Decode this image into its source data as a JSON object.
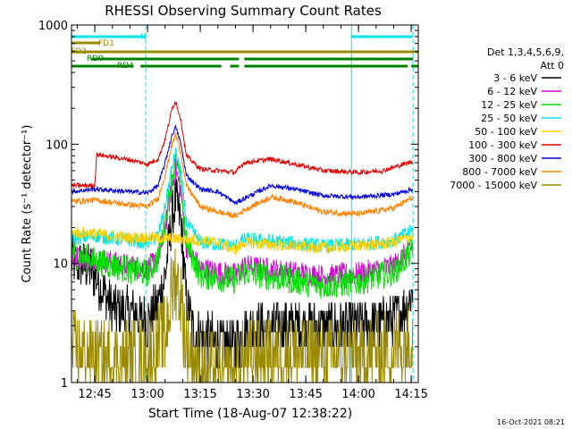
{
  "chart_data": {
    "type": "line",
    "title": "RHESSI Observing Summary Count Rates",
    "xlabel": "Start Time (18-Aug-07 12:38:22)",
    "ylabel": "Count Rate (s⁻¹ detector⁻¹)",
    "y_scale": "log",
    "ylim": [
      1,
      1000
    ],
    "xlim": [
      "12:38:22",
      "14:17:00"
    ],
    "x_ticks": [
      "12:45",
      "13:00",
      "13:15",
      "13:30",
      "13:45",
      "14:00",
      "14:15"
    ],
    "y_ticks": [
      "1",
      "10",
      "100",
      "1000"
    ],
    "legend_header": [
      "Det 1,3,4,5,6,9,",
      "Att 0"
    ],
    "legend_placement": "right",
    "footer": "16-Oct-2021 08:21",
    "state_bars": [
      {
        "name": "N",
        "color": "#00e5e5",
        "segments": [
          [
            "12:38:22",
            "12:59:30"
          ],
          [
            "13:58:00",
            "14:15:30"
          ]
        ]
      },
      {
        "name": "FD1",
        "color": "#9a8a00",
        "segments": [
          [
            "12:38:22",
            "12:46:30"
          ]
        ]
      },
      {
        "name": "FD2",
        "color": "#9a8a00",
        "segments": [
          [
            "12:38:22",
            "14:17:00"
          ]
        ]
      },
      {
        "name": "RD0",
        "color": "#008000",
        "segments": [
          [
            "12:44:00",
            "13:26:00"
          ],
          [
            "13:27:30",
            "14:15:30"
          ]
        ]
      },
      {
        "name": "RD4",
        "color": "#008000",
        "segments": [
          [
            "12:38:22",
            "12:56:00"
          ],
          [
            "12:58:00",
            "13:21:00"
          ],
          [
            "13:23:30",
            "13:26:00"
          ],
          [
            "13:27:30",
            "14:14:00"
          ],
          [
            "14:15:00",
            "14:17:00"
          ]
        ]
      }
    ],
    "vlines": [
      {
        "time": "12:38:22",
        "style": "solid"
      },
      {
        "time": "12:59:30",
        "style": "dashed"
      },
      {
        "time": "13:58:00",
        "style": "solid"
      },
      {
        "time": "14:15:30",
        "style": "dashed"
      }
    ],
    "series": [
      {
        "name": "3 - 6 keV",
        "color": "#000000",
        "points": [
          [
            "12:38:22",
            10.5
          ],
          [
            "12:44:00",
            9
          ],
          [
            "12:50:00",
            4.2
          ],
          [
            "12:55:00",
            3.8
          ],
          [
            "13:00:00",
            3.3
          ],
          [
            "13:03:00",
            4.5
          ],
          [
            "13:05:00",
            8
          ],
          [
            "13:07:00",
            24
          ],
          [
            "13:08:00",
            34
          ],
          [
            "13:09:30",
            22
          ],
          [
            "13:11:00",
            5
          ],
          [
            "13:13:00",
            2.6
          ],
          [
            "13:20:00",
            2.2
          ],
          [
            "13:25:00",
            2
          ],
          [
            "13:27:30",
            2.8
          ],
          [
            "13:40:00",
            3.0
          ],
          [
            "13:50:00",
            2.9
          ],
          [
            "14:00:00",
            3.0
          ],
          [
            "14:10:00",
            3.4
          ],
          [
            "14:14:00",
            4.5
          ],
          [
            "14:15:30",
            6
          ]
        ]
      },
      {
        "name": "6 - 12 keV",
        "color": "#e000e0",
        "points": [
          [
            "12:38:22",
            11.5
          ],
          [
            "12:45:00",
            11
          ],
          [
            "12:55:00",
            9.5
          ],
          [
            "13:00:00",
            9
          ],
          [
            "13:03:00",
            11
          ],
          [
            "13:05:00",
            20
          ],
          [
            "13:07:00",
            45
          ],
          [
            "13:08:00",
            62
          ],
          [
            "13:09:30",
            40
          ],
          [
            "13:11:00",
            14
          ],
          [
            "13:15:00",
            9
          ],
          [
            "13:25:00",
            8
          ],
          [
            "13:27:30",
            9.5
          ],
          [
            "13:40:00",
            8.5
          ],
          [
            "13:50:00",
            7.8
          ],
          [
            "14:00:00",
            8.2
          ],
          [
            "14:10:00",
            9.5
          ],
          [
            "14:15:30",
            14
          ]
        ]
      },
      {
        "name": "12 - 25 keV",
        "color": "#00e000",
        "points": [
          [
            "12:38:22",
            12
          ],
          [
            "12:45:00",
            10.5
          ],
          [
            "12:55:00",
            8.8
          ],
          [
            "13:00:00",
            8.3
          ],
          [
            "13:03:00",
            11
          ],
          [
            "13:05:00",
            22
          ],
          [
            "13:07:00",
            55
          ],
          [
            "13:08:00",
            72
          ],
          [
            "13:09:30",
            48
          ],
          [
            "13:11:00",
            15
          ],
          [
            "13:15:00",
            8
          ],
          [
            "13:25:00",
            7.2
          ],
          [
            "13:27:30",
            8.5
          ],
          [
            "13:40:00",
            7.3
          ],
          [
            "13:50:00",
            6.5
          ],
          [
            "14:00:00",
            7.0
          ],
          [
            "14:10:00",
            8.5
          ],
          [
            "14:15:30",
            13
          ]
        ]
      },
      {
        "name": "25 - 50 keV",
        "color": "#00e5e5",
        "points": [
          [
            "12:38:22",
            16
          ],
          [
            "12:45:00",
            17
          ],
          [
            "12:55:00",
            15.5
          ],
          [
            "13:00:00",
            15
          ],
          [
            "13:03:00",
            17
          ],
          [
            "13:05:00",
            30
          ],
          [
            "13:07:00",
            65
          ],
          [
            "13:08:00",
            85
          ],
          [
            "13:09:30",
            55
          ],
          [
            "13:11:00",
            22
          ],
          [
            "13:15:00",
            15
          ],
          [
            "13:25:00",
            14
          ],
          [
            "13:27:30",
            16
          ],
          [
            "13:40:00",
            15
          ],
          [
            "13:50:00",
            14
          ],
          [
            "14:00:00",
            14.5
          ],
          [
            "14:10:00",
            15.5
          ],
          [
            "14:15:30",
            19
          ]
        ]
      },
      {
        "name": "50 - 100 keV",
        "color": "#ffd000",
        "points": [
          [
            "12:38:22",
            18
          ],
          [
            "12:44:00",
            18
          ],
          [
            "12:50:00",
            17
          ],
          [
            "12:55:00",
            16.5
          ],
          [
            "13:00:00",
            16.5
          ],
          [
            "13:10:00",
            16
          ],
          [
            "13:20:00",
            15
          ],
          [
            "13:25:00",
            13
          ],
          [
            "13:27:30",
            15
          ],
          [
            "13:40:00",
            14
          ],
          [
            "13:50:00",
            13.5
          ],
          [
            "14:00:00",
            14
          ],
          [
            "14:10:00",
            15
          ],
          [
            "14:15:30",
            17
          ]
        ]
      },
      {
        "name": "100 - 300 keV",
        "color": "#e00000",
        "points": [
          [
            "12:38:22",
            45
          ],
          [
            "12:45:00",
            45
          ],
          [
            "12:45:30",
            82
          ],
          [
            "12:55:00",
            74
          ],
          [
            "13:00:00",
            68
          ],
          [
            "13:03:00",
            75
          ],
          [
            "13:05:00",
            110
          ],
          [
            "13:07:00",
            200
          ],
          [
            "13:08:00",
            230
          ],
          [
            "13:09:30",
            160
          ],
          [
            "13:11:00",
            80
          ],
          [
            "13:15:00",
            62
          ],
          [
            "13:20:00",
            60
          ],
          [
            "13:25:00",
            58
          ],
          [
            "13:27:30",
            70
          ],
          [
            "13:35:00",
            75
          ],
          [
            "13:40:00",
            70
          ],
          [
            "13:50:00",
            60
          ],
          [
            "14:00:00",
            58
          ],
          [
            "14:07:00",
            60
          ],
          [
            "14:15:30",
            72
          ]
        ]
      },
      {
        "name": "300 - 800 keV",
        "color": "#0000e0",
        "points": [
          [
            "12:38:22",
            40
          ],
          [
            "12:45:00",
            42
          ],
          [
            "12:55:00",
            40
          ],
          [
            "13:00:00",
            39
          ],
          [
            "13:03:00",
            45
          ],
          [
            "13:05:00",
            70
          ],
          [
            "13:07:00",
            120
          ],
          [
            "13:08:00",
            140
          ],
          [
            "13:09:30",
            100
          ],
          [
            "13:11:00",
            55
          ],
          [
            "13:15:00",
            42
          ],
          [
            "13:20:00",
            40
          ],
          [
            "13:25:00",
            32
          ],
          [
            "13:27:30",
            35
          ],
          [
            "13:35:00",
            45
          ],
          [
            "13:40:00",
            43
          ],
          [
            "13:50:00",
            37
          ],
          [
            "14:00:00",
            36
          ],
          [
            "14:10:00",
            38
          ],
          [
            "14:15:30",
            42
          ]
        ]
      },
      {
        "name": "800 - 7000 keV",
        "color": "#ff8000",
        "points": [
          [
            "12:38:22",
            33
          ],
          [
            "12:45:00",
            34
          ],
          [
            "12:55:00",
            31
          ],
          [
            "13:00:00",
            30
          ],
          [
            "13:03:00",
            35
          ],
          [
            "13:05:00",
            55
          ],
          [
            "13:07:00",
            100
          ],
          [
            "13:08:00",
            120
          ],
          [
            "13:09:30",
            85
          ],
          [
            "13:11:00",
            45
          ],
          [
            "13:15:00",
            30
          ],
          [
            "13:20:00",
            27
          ],
          [
            "13:25:00",
            25
          ],
          [
            "13:27:30",
            28
          ],
          [
            "13:35:00",
            36
          ],
          [
            "13:40:00",
            34
          ],
          [
            "13:50:00",
            27
          ],
          [
            "14:00:00",
            26
          ],
          [
            "14:10:00",
            29
          ],
          [
            "14:15:30",
            36
          ]
        ]
      },
      {
        "name": "7000 - 15000 keV",
        "color": "#9a8a00",
        "points": [
          [
            "12:38:22",
            1.8
          ],
          [
            "12:45:00",
            1.6
          ],
          [
            "12:55:00",
            1.5
          ],
          [
            "13:00:00",
            1.5
          ],
          [
            "13:05:00",
            2.5
          ],
          [
            "13:07:00",
            6
          ],
          [
            "13:08:00",
            8
          ],
          [
            "13:09:30",
            5
          ],
          [
            "13:11:00",
            2
          ],
          [
            "13:15:00",
            1.2
          ],
          [
            "13:25:00",
            1.1
          ],
          [
            "13:27:30",
            1.6
          ],
          [
            "13:40:00",
            1.7
          ],
          [
            "13:50:00",
            1.6
          ],
          [
            "14:00:00",
            1.6
          ],
          [
            "14:10:00",
            1.8
          ],
          [
            "14:15:30",
            2.4
          ]
        ]
      }
    ]
  }
}
